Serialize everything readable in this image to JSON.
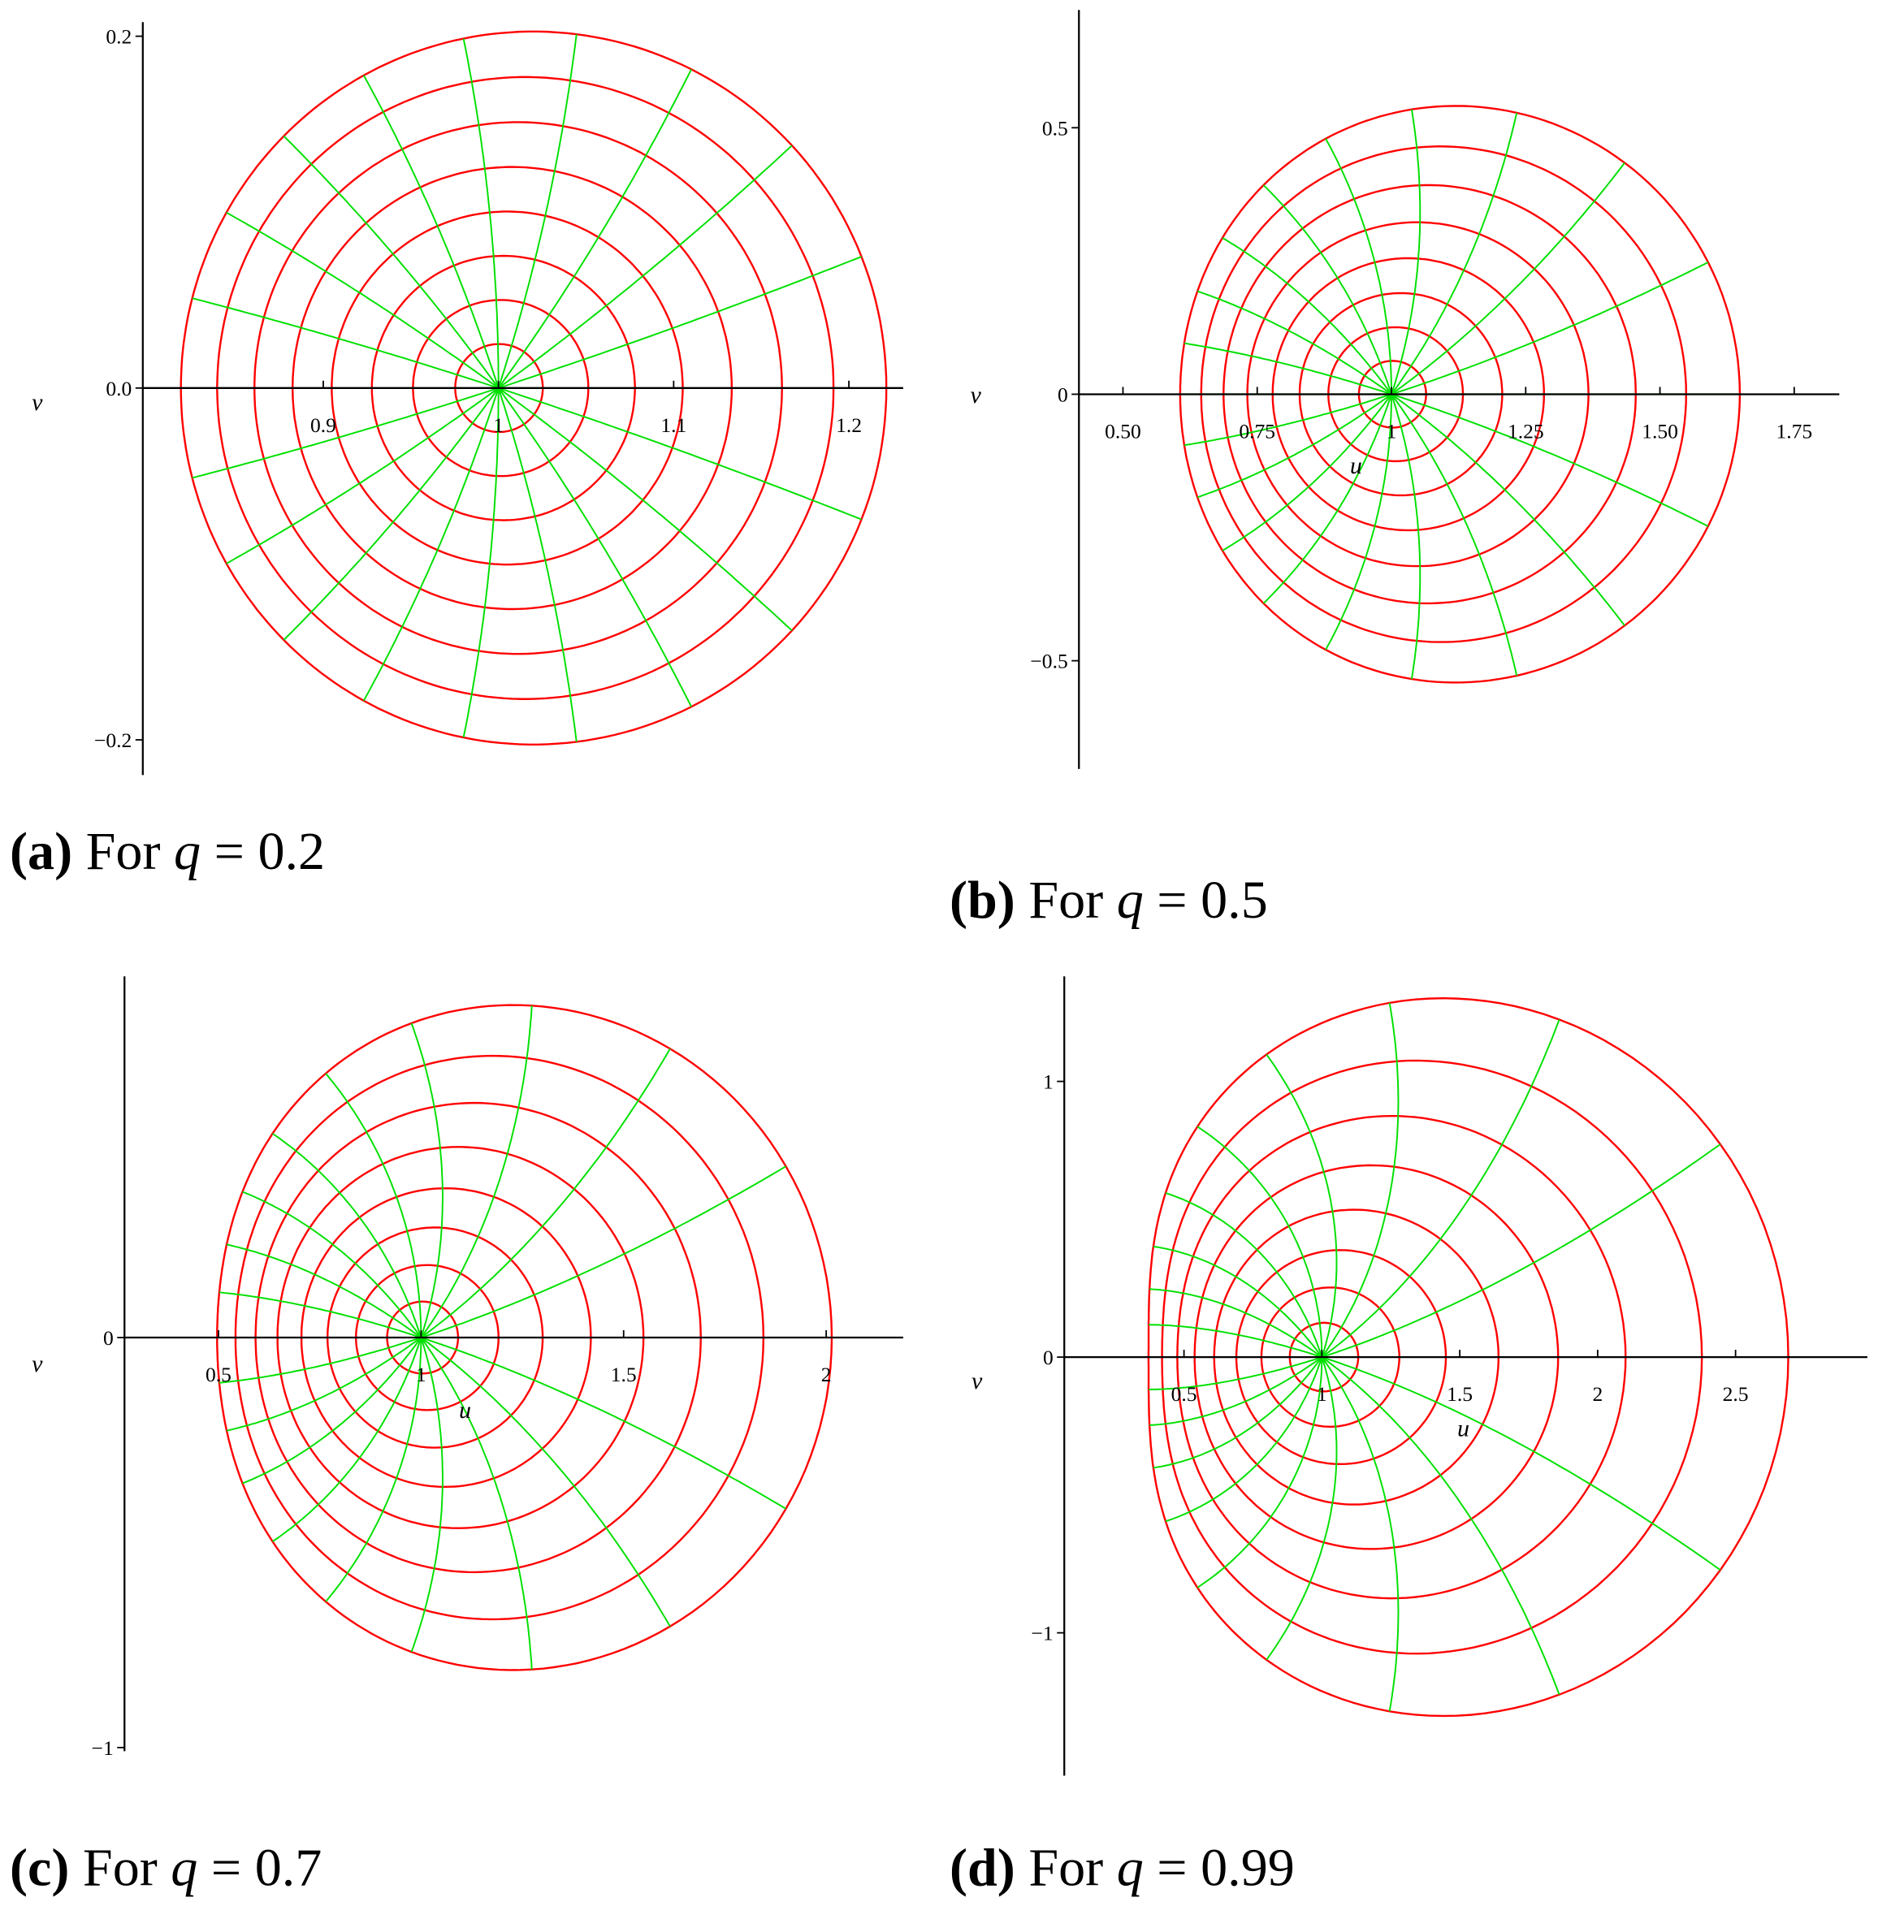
{
  "chart_data": [
    {
      "type": "line",
      "caption_tag": "(a)",
      "caption_text": "For",
      "symbol": "q",
      "relation": "=",
      "q": 0.2,
      "y_label": "v",
      "xlim": [
        0.797,
        1.231
      ],
      "ylim": [
        -0.22,
        0.208
      ],
      "xticks": [
        0.9,
        1,
        1.1,
        1.2
      ],
      "yticks": [
        0.2,
        {
          "value": 0,
          "label": "0.0"
        },
        {
          "value": -0.2,
          "label": "−0.2"
        }
      ],
      "circle_color": "#ff0000",
      "ray_color": "#00e000"
    },
    {
      "type": "line",
      "caption_tag": "(b)",
      "caption_text": "For",
      "symbol": "q",
      "relation": "=",
      "q": 0.5,
      "x_label": "u",
      "y_label": "v",
      "xlim": [
        0.418,
        1.834
      ],
      "ylim": [
        -0.703,
        0.721
      ],
      "xticks": [
        {
          "value": 0.5,
          "label": "0.50"
        },
        0.75,
        1,
        1.25,
        {
          "value": 1.5,
          "label": "1.50"
        },
        1.75
      ],
      "yticks": [
        0.5,
        0,
        {
          "value": -0.5,
          "label": "−0.5"
        }
      ],
      "circle_color": "#ff0000",
      "ray_color": "#00e000"
    },
    {
      "type": "line",
      "caption_tag": "(c)",
      "caption_text": "For",
      "symbol": "q",
      "relation": "=",
      "q": 0.7,
      "x_label": "u",
      "y_label": "v",
      "xlim": [
        0.268,
        2.19
      ],
      "ylim": [
        -1.009,
        0.881
      ],
      "xticks": [
        0.5,
        1,
        1.5,
        2
      ],
      "yticks": [
        0,
        {
          "value": -1,
          "label": "−1"
        }
      ],
      "circle_color": "#ff0000",
      "ray_color": "#00e000"
    },
    {
      "type": "line",
      "caption_tag": "(d)",
      "caption_text": "For",
      "symbol": "q",
      "relation": "=",
      "q": 0.99,
      "x_label": "u",
      "y_label": "v",
      "xlim": [
        0.066,
        2.978
      ],
      "ylim": [
        -1.518,
        1.381
      ],
      "xticks": [
        0.5,
        1,
        1.5,
        2,
        2.5
      ],
      "yticks": [
        1,
        0,
        {
          "value": -1,
          "label": "−1"
        }
      ],
      "circle_color": "#ff0000",
      "ray_color": "#00e000"
    }
  ]
}
